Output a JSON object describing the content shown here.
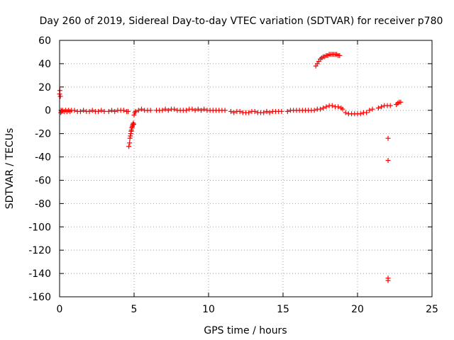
{
  "chart_data": {
    "type": "scatter",
    "title": "Day 260 of 2019, Sidereal Day-to-day VTEC variation (SDTVAR) for receiver p780",
    "xlabel": "GPS time / hours",
    "ylabel": "SDTVAR / TECUs",
    "xlim": [
      0,
      25
    ],
    "ylim": [
      -160,
      60
    ],
    "xticks": [
      "0",
      "5",
      "10",
      "15",
      "20",
      "25"
    ],
    "xtick_values": [
      0,
      5,
      10,
      15,
      20,
      25
    ],
    "yticks": [
      "60",
      "40",
      "20",
      "0",
      "-20",
      "-40",
      "-60",
      "-80",
      "-100",
      "-120",
      "-140",
      "-160"
    ],
    "ytick_values": [
      60,
      40,
      20,
      0,
      -20,
      -40,
      -60,
      -80,
      -100,
      -120,
      -140,
      -160
    ],
    "grid": true,
    "marker": "plus",
    "color": "#ff0000",
    "series": [
      {
        "name": "SDTVAR",
        "x": [
          0.0,
          0.02,
          0.05,
          0.08,
          0.1,
          0.15,
          0.2,
          0.3,
          0.4,
          0.5,
          0.6,
          0.7,
          0.8,
          1.0,
          1.2,
          1.4,
          1.6,
          1.8,
          2.0,
          2.2,
          2.4,
          2.6,
          2.8,
          3.0,
          3.3,
          3.5,
          3.7,
          3.9,
          4.1,
          4.3,
          4.5,
          4.6,
          4.65,
          4.7,
          4.72,
          4.75,
          4.78,
          4.8,
          4.82,
          4.85,
          4.88,
          4.9,
          4.92,
          4.95,
          4.98,
          5.0,
          5.05,
          5.1,
          5.3,
          5.5,
          5.7,
          5.9,
          6.1,
          6.5,
          6.7,
          6.9,
          7.1,
          7.3,
          7.5,
          7.7,
          7.9,
          8.1,
          8.3,
          8.5,
          8.7,
          8.9,
          9.1,
          9.3,
          9.5,
          9.7,
          9.9,
          10.1,
          10.3,
          10.5,
          10.7,
          10.9,
          11.1,
          11.5,
          11.7,
          11.9,
          12.1,
          12.3,
          12.5,
          12.7,
          12.9,
          13.1,
          13.3,
          13.5,
          13.7,
          13.9,
          14.1,
          14.3,
          14.5,
          14.7,
          14.9,
          15.3,
          15.5,
          15.7,
          15.9,
          16.1,
          16.3,
          16.5,
          16.7,
          16.9,
          17.1,
          17.3,
          17.5,
          17.7,
          17.9,
          18.1,
          18.3,
          18.5,
          18.7,
          18.9,
          19.0,
          19.2,
          19.4,
          19.6,
          19.8,
          20.0,
          20.2,
          20.4,
          20.6,
          20.8,
          21.0,
          21.4,
          21.6,
          21.8,
          22.0,
          22.2,
          22.6,
          22.7,
          22.8,
          22.9,
          17.2,
          17.3,
          17.4,
          17.5,
          17.6,
          17.7,
          17.8,
          17.9,
          18.0,
          18.1,
          18.2,
          18.3,
          18.4,
          18.5,
          18.6,
          18.7,
          18.8,
          22.05,
          22.05,
          22.05,
          22.05
        ],
        "y": [
          14,
          17,
          12,
          -2,
          0,
          -1,
          0,
          -1,
          0,
          -1,
          0,
          -1,
          0,
          0,
          -1,
          -1,
          0,
          -1,
          -1,
          0,
          -1,
          -1,
          0,
          -1,
          -1,
          0,
          -1,
          0,
          0,
          0,
          -1,
          -1,
          -31,
          -28,
          -24,
          -22,
          -20,
          -18,
          -17,
          -15,
          -14,
          -13,
          -12,
          -11,
          -12,
          -4,
          -2,
          -1,
          0,
          1,
          0,
          0,
          0,
          0,
          0,
          0,
          1,
          0,
          1,
          1,
          0,
          0,
          0,
          0,
          1,
          1,
          0,
          1,
          0,
          1,
          0,
          0,
          0,
          0,
          0,
          0,
          0,
          -1,
          -2,
          -1,
          -1,
          -2,
          -2,
          -2,
          -1,
          -1,
          -2,
          -2,
          -2,
          -1,
          -2,
          -1,
          -1,
          -1,
          -1,
          -1,
          0,
          0,
          0,
          0,
          0,
          0,
          0,
          0,
          0,
          1,
          1,
          2,
          3,
          4,
          4,
          3,
          3,
          2,
          1,
          -2,
          -3,
          -3,
          -3,
          -3,
          -3,
          -2,
          -2,
          0,
          1,
          2,
          3,
          4,
          4,
          4,
          5,
          6,
          7,
          7,
          38,
          40,
          42,
          44,
          45,
          46,
          46,
          47,
          47,
          48,
          48,
          48,
          48,
          48,
          48,
          47,
          47,
          -24,
          -43,
          -144,
          -146
        ]
      }
    ]
  }
}
